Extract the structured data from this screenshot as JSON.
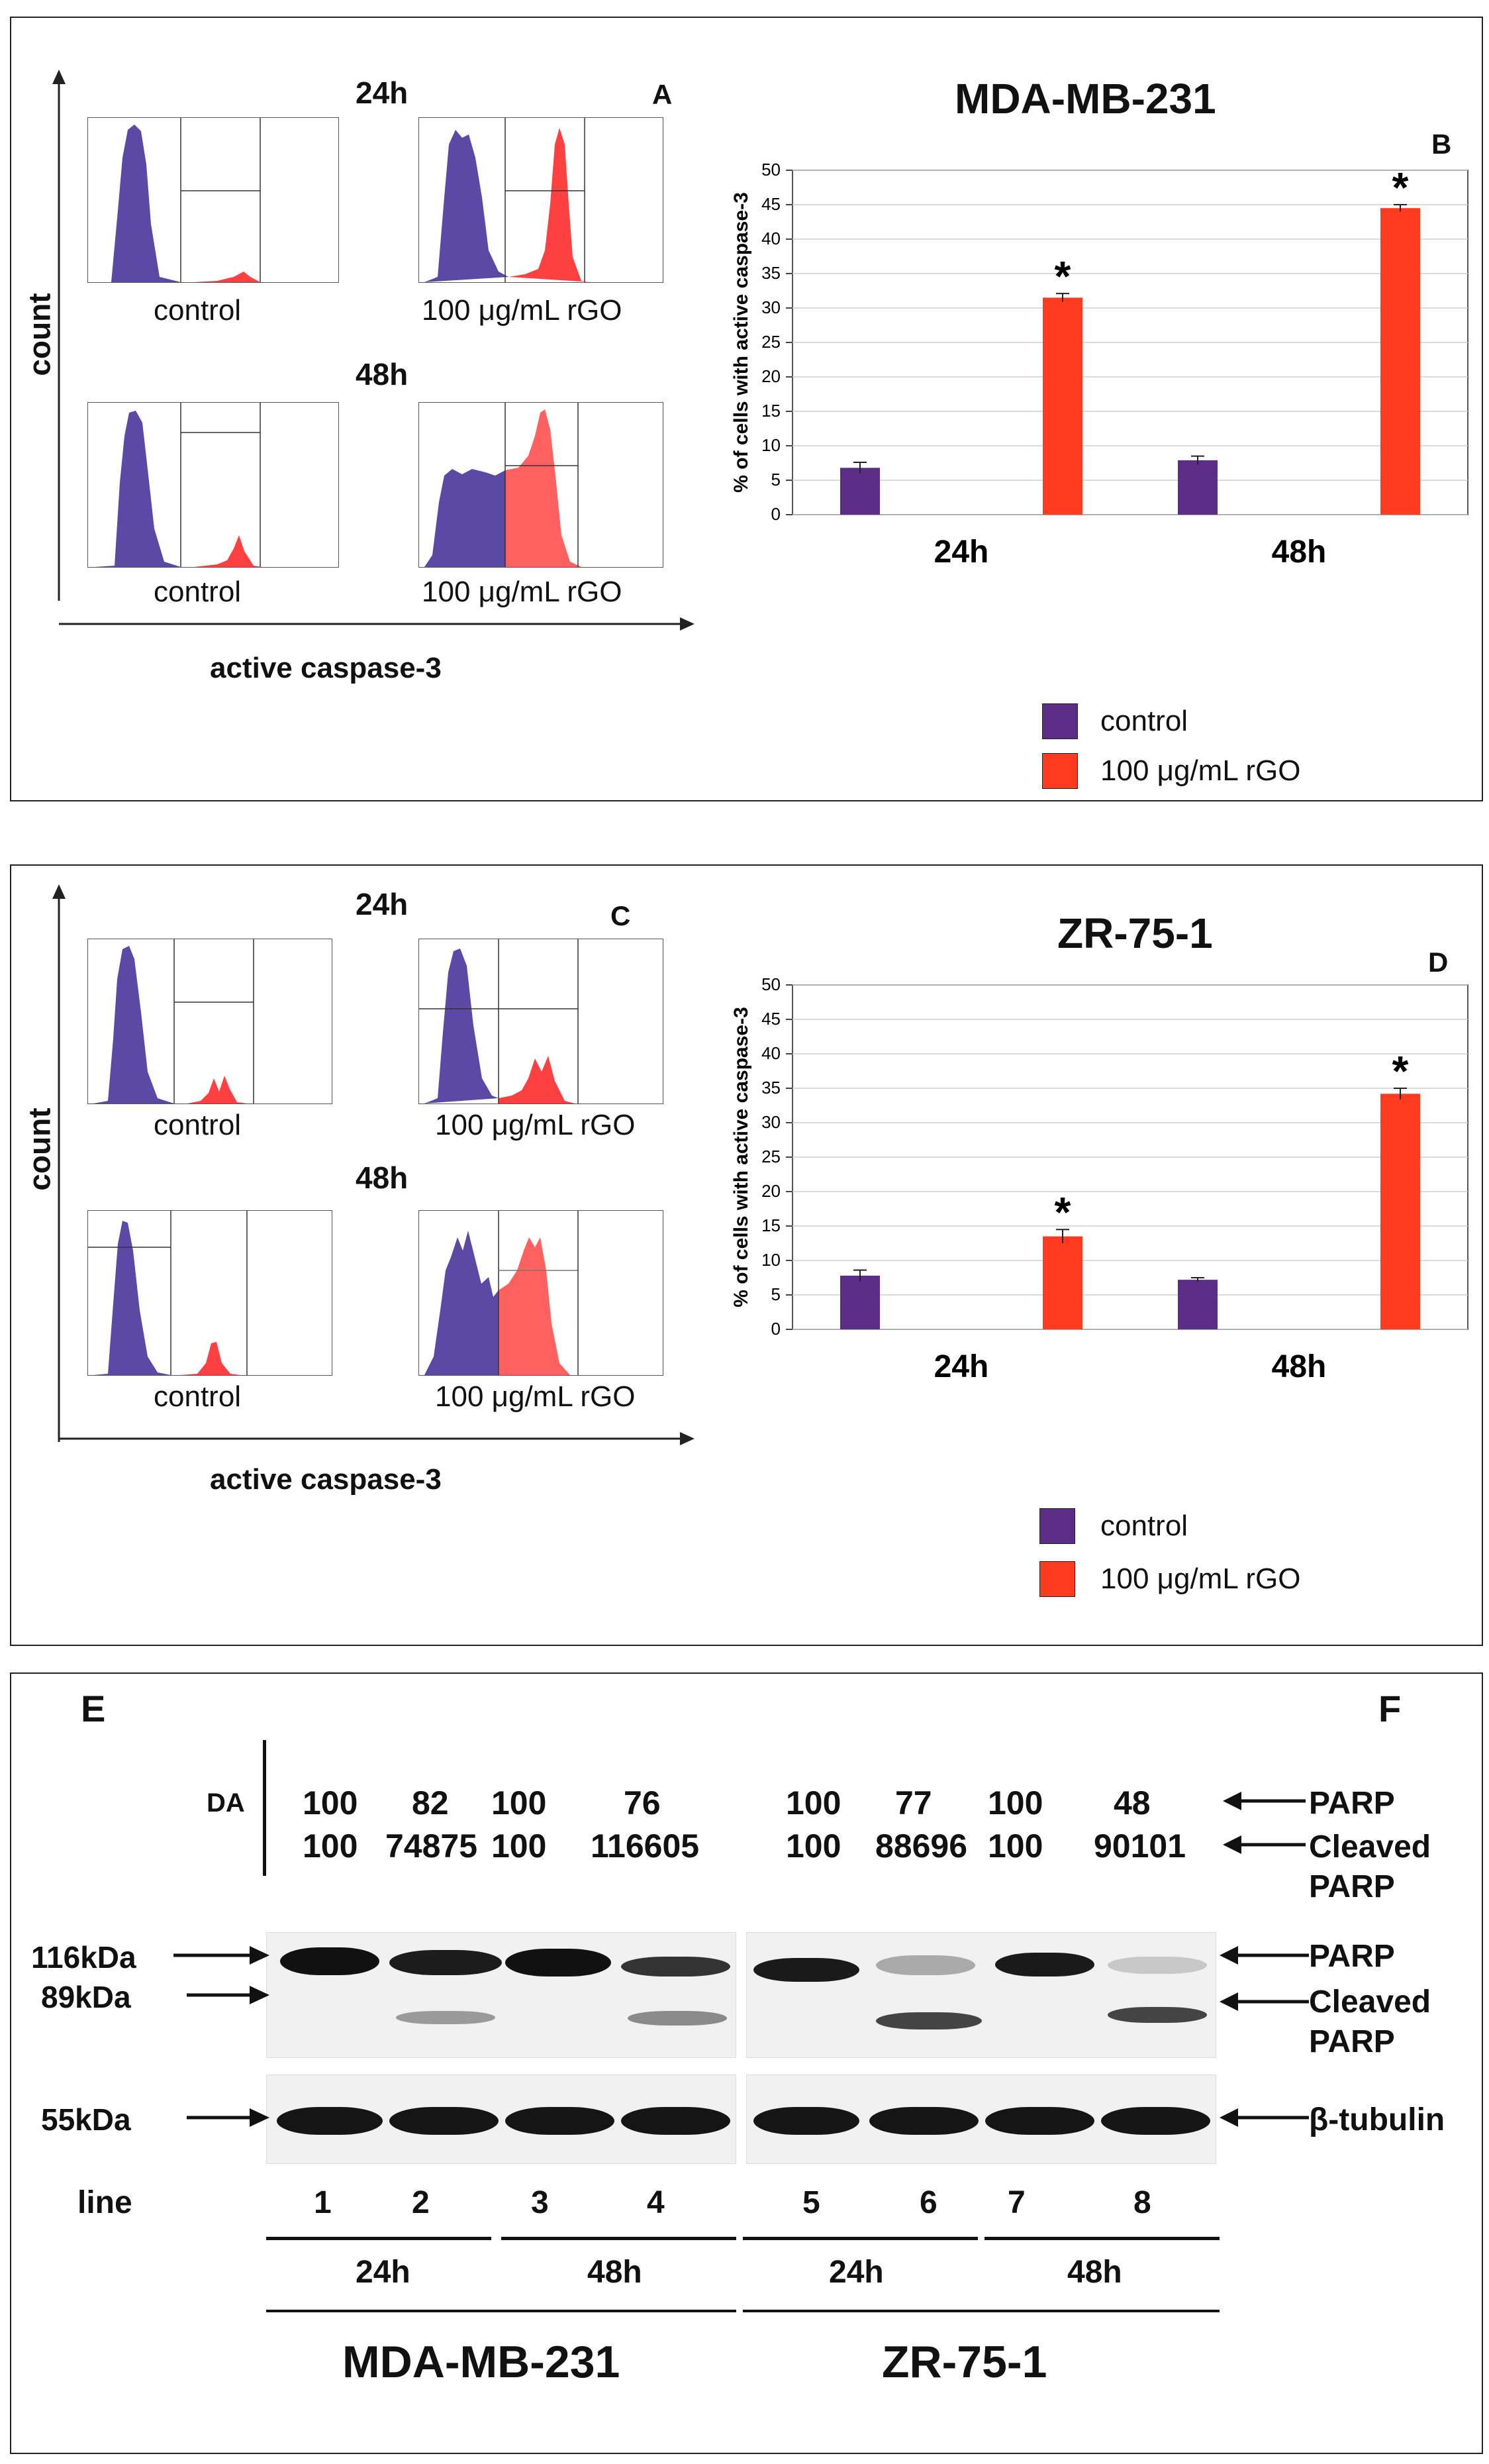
{
  "panel_top": {
    "time_24": "24h",
    "time_48": "48h",
    "letter_a": "A",
    "letter_b": "B",
    "label_control_1": "control",
    "label_rgo_1": "100 μg/mL rGO",
    "label_control_2": "control",
    "label_rgo_2": "100 μg/mL rGO",
    "yaxis": "count",
    "xaxis": "active caspase-3",
    "chart_title": "MDA-MB-231",
    "legend_control": "control",
    "legend_rgo": "100 μg/mL rGO"
  },
  "panel_mid": {
    "time_24": "24h",
    "time_48": "48h",
    "letter_c": "C",
    "letter_d": "D",
    "label_control_1": "control",
    "label_rgo_1": "100 μg/mL rGO",
    "label_control_2": "control",
    "label_rgo_2": "100 μg/mL rGO",
    "yaxis": "count",
    "xaxis": "active caspase-3",
    "chart_title": "ZR-75-1",
    "legend_control": "control",
    "legend_rgo": "100 μg/mL rGO"
  },
  "panel_blot": {
    "letter_e": "E",
    "letter_f": "F",
    "da_label": "DA",
    "da_row1": [
      "100",
      "82",
      "100",
      "76",
      "100",
      "77",
      "100",
      "48"
    ],
    "da_row2": [
      "100",
      "74875",
      "100",
      "116605",
      "100",
      "88696",
      "100",
      "90101"
    ],
    "right_parp_top": "PARP",
    "right_cleaved_top": "Cleaved",
    "right_cleaved_top2": "PARP",
    "marker_116": "116kDa",
    "marker_89": "89kDa",
    "marker_55": "55kDa",
    "right_parp": "PARP",
    "right_cleaved": "Cleaved",
    "right_cleaved2": "PARP",
    "right_tubulin": "β-tubulin",
    "line_label": "line",
    "lanes": [
      "1",
      "2",
      "3",
      "4",
      "5",
      "6",
      "7",
      "8"
    ],
    "time_groups": [
      "24h",
      "48h",
      "24h",
      "48h"
    ],
    "cell_lines": [
      "MDA-MB-231",
      "ZR-75-1"
    ]
  },
  "colors": {
    "control": "#5b2d86",
    "rgo": "#ff3b1f",
    "hist_purple": "#5a4aa5",
    "hist_red": "#ff4040"
  },
  "chart_data": [
    {
      "type": "bar",
      "title": "MDA-MB-231",
      "categories": [
        "24h",
        "48h"
      ],
      "series": [
        {
          "name": "control",
          "values": [
            6.8,
            7.9
          ],
          "errors": [
            0.8,
            0.6
          ]
        },
        {
          "name": "100 μg/mL rGO",
          "values": [
            31.5,
            44.5
          ],
          "errors": [
            0.6,
            0.5
          ]
        }
      ],
      "significance": [
        "*",
        "*"
      ],
      "ylabel": "% of cells with active caspase-3",
      "xlabel": "",
      "ylim": [
        0,
        50
      ],
      "yticks": [
        "0",
        "5",
        "10",
        "15",
        "20",
        "25",
        "30",
        "35",
        "40",
        "45",
        "50"
      ]
    },
    {
      "type": "bar",
      "title": "ZR-75-1",
      "categories": [
        "24h",
        "48h"
      ],
      "series": [
        {
          "name": "control",
          "values": [
            7.8,
            7.2
          ],
          "errors": [
            0.8,
            0.3
          ]
        },
        {
          "name": "100 μg/mL rGO",
          "values": [
            13.5,
            34.2
          ],
          "errors": [
            1.0,
            0.8
          ]
        }
      ],
      "significance": [
        "*",
        "*"
      ],
      "ylabel": "% of cells with active caspase-3",
      "xlabel": "",
      "ylim": [
        0,
        50
      ],
      "yticks": [
        "0",
        "5",
        "10",
        "15",
        "20",
        "25",
        "30",
        "35",
        "40",
        "45",
        "50"
      ]
    }
  ]
}
